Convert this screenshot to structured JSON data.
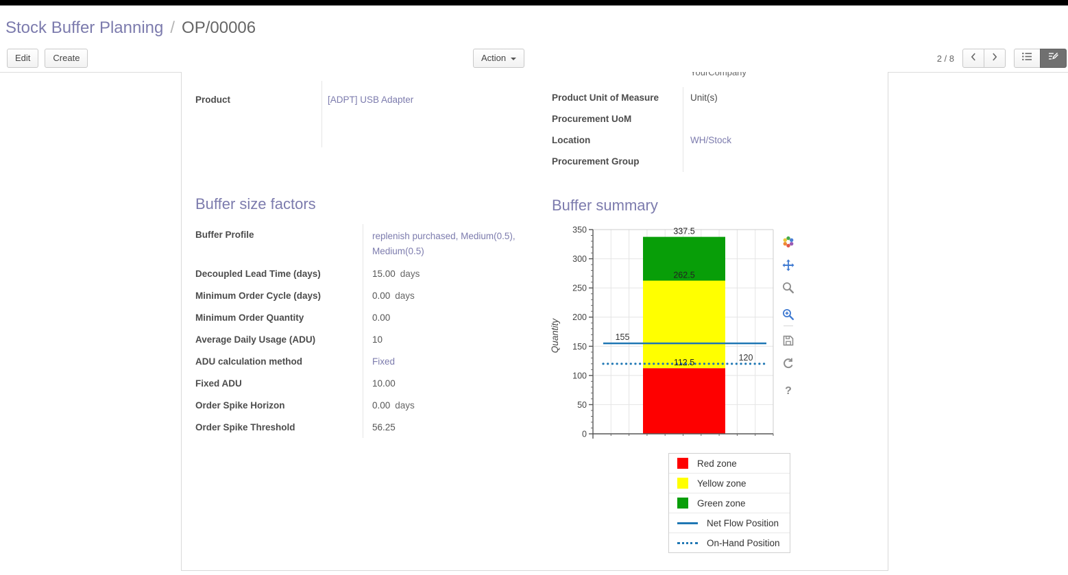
{
  "header": {
    "breadcrumb": {
      "parent": "Stock Buffer Planning",
      "separator": "/",
      "current": "OP/00006"
    },
    "toolbar": {
      "edit": "Edit",
      "create": "Create",
      "action": "Action",
      "pager": "2 / 8"
    }
  },
  "sheet": {
    "company_partial": "YourCompany",
    "top_left": {
      "rows": [
        {
          "label": "Product",
          "value": "[ADPT] USB Adapter"
        }
      ]
    },
    "top_right": {
      "rows": [
        {
          "label": "Product Unit of Measure",
          "value": "Unit(s)"
        },
        {
          "label": "Procurement UoM",
          "value": ""
        },
        {
          "label": "Location",
          "value": "WH/Stock"
        },
        {
          "label": "Procurement Group",
          "value": ""
        }
      ]
    },
    "buffer_factors": {
      "title": "Buffer size factors",
      "rows": [
        {
          "label": "Buffer Profile",
          "value": "replenish purchased, Medium(0.5), Medium(0.5)",
          "unit": ""
        },
        {
          "label": "Decoupled Lead Time (days)",
          "value": "15.00",
          "unit": "days"
        },
        {
          "label": "Minimum Order Cycle (days)",
          "value": "0.00",
          "unit": "days"
        },
        {
          "label": "Minimum Order Quantity",
          "value": "0.00",
          "unit": ""
        },
        {
          "label": "Average Daily Usage (ADU)",
          "value": "10",
          "unit": ""
        },
        {
          "label": "ADU calculation method",
          "value": "Fixed",
          "unit": ""
        },
        {
          "label": "Fixed ADU",
          "value": "10.00",
          "unit": ""
        },
        {
          "label": "Order Spike Horizon",
          "value": "0.00",
          "unit": "days"
        },
        {
          "label": "Order Spike Threshold",
          "value": "56.25",
          "unit": ""
        }
      ]
    },
    "buffer_summary": {
      "title": "Buffer summary"
    }
  },
  "chart_data": {
    "type": "bar",
    "title": "",
    "xlabel": "",
    "ylabel": "Quantity",
    "ylim": [
      0,
      350
    ],
    "yticks": [
      0,
      50,
      100,
      150,
      200,
      250,
      300,
      350
    ],
    "grid": true,
    "zones": [
      {
        "name": "Red zone",
        "from": 0,
        "to": 112.5,
        "color": "#fe0000"
      },
      {
        "name": "Yellow zone",
        "from": 112.5,
        "to": 262.5,
        "color": "#ffff00"
      },
      {
        "name": "Green zone",
        "from": 262.5,
        "to": 337.5,
        "color": "#089e08"
      }
    ],
    "lines": [
      {
        "name": "Net Flow Position",
        "value": 155,
        "style": "solid",
        "color": "#1f77b4",
        "label": "155",
        "label_side": "left"
      },
      {
        "name": "On-Hand Position",
        "value": 120,
        "style": "dotted",
        "color": "#1f77b4",
        "label": "120",
        "label_side": "right"
      }
    ],
    "annotations": [
      {
        "text": "337.5",
        "value": 337.5
      },
      {
        "text": "262.5",
        "value": 262.5
      },
      {
        "text": "112.5",
        "value": 112.5
      }
    ],
    "legend_position": "bottom-right",
    "legend_items": [
      {
        "label": "Red zone",
        "swatch": "square",
        "color": "#fe0000"
      },
      {
        "label": "Yellow zone",
        "swatch": "square",
        "color": "#ffff00"
      },
      {
        "label": "Green zone",
        "swatch": "square",
        "color": "#089e08"
      },
      {
        "label": "Net Flow Position",
        "swatch": "line",
        "color": "#1f77b4"
      },
      {
        "label": "On-Hand Position",
        "swatch": "dotted",
        "color": "#1f77b4"
      }
    ],
    "modebar": [
      {
        "name": "bokeh-logo-icon",
        "active": false
      },
      {
        "name": "pan-icon",
        "active": true
      },
      {
        "name": "box-zoom-icon",
        "active": false
      },
      {
        "name": "wheel-zoom-icon",
        "active": true
      },
      {
        "name": "save-icon",
        "active": false
      },
      {
        "name": "reset-icon",
        "active": false
      },
      {
        "name": "help-icon",
        "active": false
      }
    ]
  },
  "colors": {
    "accent": "#7c7bad",
    "net_flow": "#1f77b4"
  }
}
